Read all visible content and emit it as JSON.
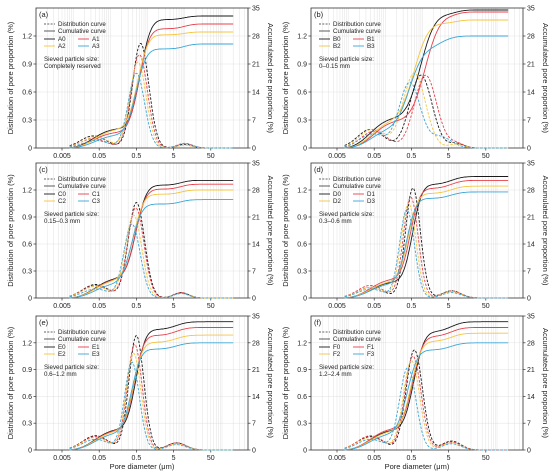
{
  "figure": {
    "x_axis_label": "Pore diameter (μm)",
    "left_axis_label": "Distribution of pore proportion (%)",
    "right_axis_label": "Accumulated pore proportion (%)",
    "legend_distribution": "Distribution curve",
    "legend_cumulative": "Cumulative curve",
    "series_colors": [
      "#1a1a1a",
      "#e8404a",
      "#f5c542",
      "#3aa6d8"
    ]
  },
  "chart_data": [
    {
      "type": "line",
      "panel_label": "(a)",
      "sieve_label": "Sieved particle size:",
      "sieve_value": "Completely reserved",
      "series_names": [
        "A0",
        "A1",
        "A2",
        "A3"
      ],
      "x_scale": "log",
      "x_ticks": [
        0.005,
        0.05,
        0.5,
        5,
        50
      ],
      "xlim": [
        0.001,
        500
      ],
      "left_ylim": [
        0,
        1.5
      ],
      "left_ticks": [
        0,
        0.3,
        0.6,
        0.9,
        1.2
      ],
      "right_ylim": [
        0,
        35
      ],
      "right_ticks": [
        0,
        7,
        14,
        21,
        28,
        35
      ],
      "grid": true,
      "distribution": [
        {
          "name": "A0",
          "peaks": [
            [
              0.035,
              0.13,
              0.35
            ],
            [
              0.65,
              1.12,
              0.22
            ],
            [
              10,
              0.04,
              0.2
            ]
          ]
        },
        {
          "name": "A1",
          "peaks": [
            [
              0.035,
              0.1,
              0.35
            ],
            [
              0.6,
              1.0,
              0.22
            ],
            [
              10,
              0.05,
              0.2
            ]
          ]
        },
        {
          "name": "A2",
          "peaks": [
            [
              0.04,
              0.12,
              0.35
            ],
            [
              0.55,
              0.92,
              0.22
            ],
            [
              10,
              0.03,
              0.2
            ]
          ]
        },
        {
          "name": "A3",
          "peaks": [
            [
              0.04,
              0.08,
              0.35
            ],
            [
              0.5,
              0.8,
              0.22
            ],
            [
              10,
              0.05,
              0.2
            ]
          ]
        }
      ],
      "cumulative_final": [
        33,
        31,
        29,
        26
      ]
    },
    {
      "type": "line",
      "panel_label": "(b)",
      "sieve_label": "Sieved particle size:",
      "sieve_value": "0–0.15 mm",
      "series_names": [
        "B0",
        "B1",
        "B2",
        "B3"
      ],
      "x_scale": "log",
      "x_ticks": [
        0.005,
        0.05,
        0.5,
        5,
        50
      ],
      "xlim": [
        0.001,
        500
      ],
      "left_ylim": [
        0,
        1.5
      ],
      "left_ticks": [
        0,
        0.3,
        0.6,
        0.9,
        1.2
      ],
      "right_ylim": [
        0,
        35
      ],
      "right_ticks": [
        0,
        7,
        14,
        21,
        28,
        35
      ],
      "grid": true,
      "distribution": [
        {
          "name": "B0",
          "peaks": [
            [
              0.04,
              0.2,
              0.35
            ],
            [
              0.9,
              0.78,
              0.3
            ],
            [
              8,
              0.05,
              0.2
            ]
          ]
        },
        {
          "name": "B1",
          "peaks": [
            [
              0.05,
              0.18,
              0.35
            ],
            [
              1.2,
              0.78,
              0.3
            ],
            [
              8,
              0.05,
              0.2
            ]
          ]
        },
        {
          "name": "B2",
          "peaks": [
            [
              0.045,
              0.2,
              0.35
            ],
            [
              0.6,
              0.8,
              0.3
            ],
            [
              8,
              0.04,
              0.2
            ]
          ]
        },
        {
          "name": "B3",
          "peaks": [
            [
              0.045,
              0.15,
              0.35
            ],
            [
              0.45,
              0.7,
              0.28
            ],
            [
              3,
              0.12,
              0.3
            ]
          ]
        }
      ],
      "cumulative_final": [
        34.5,
        34,
        32,
        28
      ]
    },
    {
      "type": "line",
      "panel_label": "(c)",
      "sieve_label": "Sieved particle size:",
      "sieve_value": "0.15–0.3 mm",
      "series_names": [
        "C0",
        "C1",
        "C2",
        "C3"
      ],
      "x_scale": "log",
      "x_ticks": [
        0.005,
        0.05,
        0.5,
        5,
        50
      ],
      "xlim": [
        0.001,
        500
      ],
      "left_ylim": [
        0,
        1.5
      ],
      "left_ticks": [
        0,
        0.3,
        0.6,
        0.9,
        1.2
      ],
      "right_ylim": [
        0,
        35
      ],
      "right_ticks": [
        0,
        7,
        14,
        21,
        28,
        35
      ],
      "grid": true,
      "distribution": [
        {
          "name": "C0",
          "peaks": [
            [
              0.04,
              0.15,
              0.35
            ],
            [
              0.5,
              1.06,
              0.22
            ],
            [
              8,
              0.06,
              0.2
            ]
          ]
        },
        {
          "name": "C1",
          "peaks": [
            [
              0.04,
              0.14,
              0.35
            ],
            [
              0.48,
              1.0,
              0.22
            ],
            [
              8,
              0.06,
              0.2
            ]
          ]
        },
        {
          "name": "C2",
          "peaks": [
            [
              0.04,
              0.13,
              0.35
            ],
            [
              0.42,
              0.92,
              0.22
            ],
            [
              8,
              0.05,
              0.2
            ]
          ]
        },
        {
          "name": "C3",
          "peaks": [
            [
              0.04,
              0.1,
              0.35
            ],
            [
              0.38,
              0.82,
              0.22
            ],
            [
              8,
              0.05,
              0.2
            ]
          ]
        }
      ],
      "cumulative_final": [
        30.5,
        29.5,
        28,
        25.5
      ]
    },
    {
      "type": "line",
      "panel_label": "(d)",
      "sieve_label": "Sieved particle size:",
      "sieve_value": "0.3–0.6 mm",
      "series_names": [
        "D0",
        "D1",
        "D2",
        "D3"
      ],
      "x_scale": "log",
      "x_ticks": [
        0.005,
        0.05,
        0.5,
        5,
        50
      ],
      "xlim": [
        0.001,
        500
      ],
      "left_ylim": [
        0,
        1.5
      ],
      "left_ticks": [
        0,
        0.3,
        0.6,
        0.9,
        1.2
      ],
      "right_ylim": [
        0,
        35
      ],
      "right_ticks": [
        0,
        7,
        14,
        21,
        28,
        35
      ],
      "grid": true,
      "distribution": [
        {
          "name": "D0",
          "peaks": [
            [
              0.04,
              0.12,
              0.35
            ],
            [
              0.55,
              1.22,
              0.2
            ],
            [
              6,
              0.08,
              0.25
            ]
          ]
        },
        {
          "name": "D1",
          "peaks": [
            [
              0.04,
              0.14,
              0.35
            ],
            [
              0.48,
              1.12,
              0.2
            ],
            [
              6,
              0.08,
              0.25
            ]
          ]
        },
        {
          "name": "D2",
          "peaks": [
            [
              0.04,
              0.12,
              0.35
            ],
            [
              0.42,
              1.05,
              0.2
            ],
            [
              6,
              0.07,
              0.25
            ]
          ]
        },
        {
          "name": "D3",
          "peaks": [
            [
              0.04,
              0.1,
              0.35
            ],
            [
              0.38,
              0.98,
              0.2
            ],
            [
              6,
              0.06,
              0.25
            ]
          ]
        }
      ],
      "cumulative_final": [
        31.5,
        30.5,
        29,
        27.5
      ]
    },
    {
      "type": "line",
      "panel_label": "(e)",
      "sieve_label": "Sieved particle size:",
      "sieve_value": "0.6–1.2 mm",
      "series_names": [
        "E0",
        "E1",
        "E2",
        "E3"
      ],
      "x_scale": "log",
      "x_ticks": [
        0.005,
        0.05,
        0.5,
        5,
        50
      ],
      "xlim": [
        0.001,
        500
      ],
      "left_ylim": [
        0,
        1.5
      ],
      "left_ticks": [
        0,
        0.3,
        0.6,
        0.9,
        1.2
      ],
      "right_ylim": [
        0,
        35
      ],
      "right_ticks": [
        0,
        7,
        14,
        21,
        28,
        35
      ],
      "grid": true,
      "distribution": [
        {
          "name": "E0",
          "peaks": [
            [
              0.04,
              0.16,
              0.35
            ],
            [
              0.5,
              1.28,
              0.2
            ],
            [
              6,
              0.08,
              0.25
            ]
          ]
        },
        {
          "name": "E1",
          "peaks": [
            [
              0.04,
              0.15,
              0.35
            ],
            [
              0.45,
              1.18,
              0.2
            ],
            [
              6,
              0.08,
              0.25
            ]
          ]
        },
        {
          "name": "E2",
          "peaks": [
            [
              0.04,
              0.14,
              0.35
            ],
            [
              0.42,
              1.08,
              0.2
            ],
            [
              6,
              0.07,
              0.25
            ]
          ]
        },
        {
          "name": "E3",
          "peaks": [
            [
              0.04,
              0.12,
              0.35
            ],
            [
              0.38,
              0.98,
              0.2
            ],
            [
              6,
              0.06,
              0.25
            ]
          ]
        }
      ],
      "cumulative_final": [
        33.5,
        32,
        30,
        28
      ]
    },
    {
      "type": "line",
      "panel_label": "(f)",
      "sieve_label": "Sieved particle size:",
      "sieve_value": "1.2–2.4 mm",
      "series_names": [
        "F0",
        "F1",
        "F2",
        "F3"
      ],
      "x_scale": "log",
      "x_ticks": [
        0.005,
        0.05,
        0.5,
        5,
        50
      ],
      "xlim": [
        0.001,
        500
      ],
      "left_ylim": [
        0,
        1.5
      ],
      "left_ticks": [
        0,
        0.3,
        0.6,
        0.9,
        1.2
      ],
      "right_ylim": [
        0,
        35
      ],
      "right_ticks": [
        0,
        7,
        14,
        21,
        28,
        35
      ],
      "grid": true,
      "distribution": [
        {
          "name": "F0",
          "peaks": [
            [
              0.04,
              0.15,
              0.35
            ],
            [
              0.6,
              1.12,
              0.22
            ],
            [
              6,
              0.1,
              0.25
            ]
          ]
        },
        {
          "name": "F1",
          "peaks": [
            [
              0.04,
              0.16,
              0.35
            ],
            [
              0.55,
              1.05,
              0.22
            ],
            [
              6,
              0.09,
              0.25
            ]
          ]
        },
        {
          "name": "F2",
          "peaks": [
            [
              0.04,
              0.14,
              0.35
            ],
            [
              0.5,
              1.0,
              0.22
            ],
            [
              6,
              0.08,
              0.25
            ]
          ]
        },
        {
          "name": "F3",
          "peaks": [
            [
              0.04,
              0.12,
              0.35
            ],
            [
              0.4,
              0.92,
              0.22
            ],
            [
              6,
              0.07,
              0.25
            ]
          ]
        }
      ],
      "cumulative_final": [
        33.5,
        32,
        30.5,
        28
      ]
    }
  ]
}
